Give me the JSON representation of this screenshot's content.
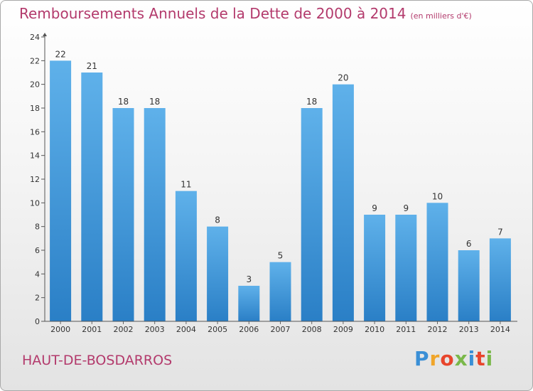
{
  "chart_data": {
    "type": "bar",
    "title": "Remboursements Annuels de la Dette de 2000 à 2014",
    "subtitle": "(en milliers d'€)",
    "categories": [
      "2000",
      "2001",
      "2002",
      "2003",
      "2004",
      "2005",
      "2006",
      "2007",
      "2008",
      "2009",
      "2010",
      "2011",
      "2012",
      "2013",
      "2014"
    ],
    "values": [
      22,
      21,
      18,
      18,
      11,
      8,
      3,
      5,
      18,
      20,
      9,
      9,
      10,
      6,
      7
    ],
    "ylim": [
      0,
      24
    ],
    "yticks": [
      0,
      2,
      4,
      6,
      8,
      10,
      12,
      14,
      16,
      18,
      20,
      22,
      24
    ],
    "xlabel": "",
    "ylabel": "",
    "grid": false,
    "colors": {
      "bar_top": "#5fb1ea",
      "bar_bottom": "#2a7fc6",
      "title": "#b33a6c"
    }
  },
  "footer": {
    "city": "HAUT-DE-BOSDARROS",
    "logo": "Proxiti"
  }
}
